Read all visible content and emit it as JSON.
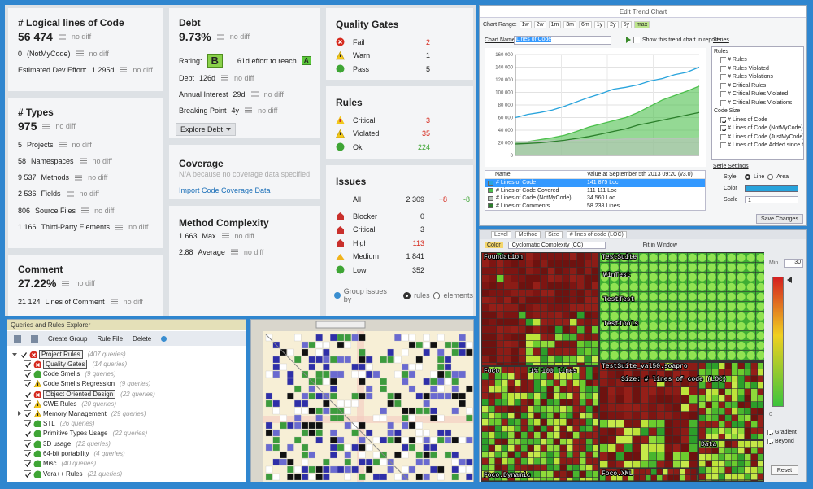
{
  "dashboard": {
    "loc": {
      "title": "# Logical lines of Code",
      "value": "56 474",
      "diff": "no diff",
      "rows": [
        {
          "num": "0",
          "label": "(NotMyCode)",
          "diff": "no diff"
        },
        {
          "num": "Estimated Dev Effort:",
          "label": "1 295d",
          "diff": "no diff"
        }
      ]
    },
    "types": {
      "title": "# Types",
      "value": "975",
      "diff": "no diff",
      "rows": [
        {
          "num": "5",
          "label": "Projects",
          "diff": "no diff"
        },
        {
          "num": "58",
          "label": "Namespaces",
          "diff": "no diff"
        },
        {
          "num": "9 537",
          "label": "Methods",
          "diff": "no diff"
        },
        {
          "num": "2 536",
          "label": "Fields",
          "diff": "no diff"
        },
        {
          "num": "806",
          "label": "Source Files",
          "diff": "no diff"
        },
        {
          "num": "1 166",
          "label": "Third-Party Elements",
          "diff": "no diff"
        }
      ]
    },
    "comment": {
      "title": "Comment",
      "value": "27.22%",
      "diff": "no diff",
      "rows": [
        {
          "num": "21 124",
          "label": "Lines of Comment",
          "diff": "no diff"
        }
      ]
    },
    "debt": {
      "title": "Debt",
      "value": "9.73%",
      "diff": "no diff",
      "rating_label": "Rating:",
      "rating": "B",
      "effort": "61d effort to reach",
      "target": "A",
      "rows": [
        {
          "num": "Debt",
          "label": "126d",
          "diff": "no diff"
        },
        {
          "num": "Annual Interest",
          "label": "29d",
          "diff": "no diff"
        },
        {
          "num": "Breaking Point",
          "label": "4y",
          "diff": "no diff"
        }
      ],
      "button": "Explore Debt"
    },
    "coverage": {
      "title": "Coverage",
      "note": "N/A because no coverage data specified",
      "link": "Import Code Coverage Data"
    },
    "method": {
      "title": "Method Complexity",
      "rows": [
        {
          "num": "1 663",
          "label": "Max",
          "diff": "no diff"
        },
        {
          "num": "2.88",
          "label": "Average",
          "diff": "no diff"
        }
      ]
    },
    "gates": {
      "title": "Quality Gates",
      "rows": [
        {
          "label": "Fail",
          "count": "2"
        },
        {
          "label": "Warn",
          "count": "1"
        },
        {
          "label": "Pass",
          "count": "5"
        }
      ]
    },
    "rules": {
      "title": "Rules",
      "rows": [
        {
          "label": "Critical",
          "count": "3"
        },
        {
          "label": "Violated",
          "count": "35"
        },
        {
          "label": "Ok",
          "count": "224"
        }
      ]
    },
    "issues": {
      "title": "Issues",
      "all": {
        "label": "All",
        "count": "2 309",
        "added": "+8",
        "removed": "-8"
      },
      "rows": [
        {
          "label": "Blocker",
          "count": "0"
        },
        {
          "label": "Critical",
          "count": "3"
        },
        {
          "label": "High",
          "count": "113"
        },
        {
          "label": "Medium",
          "count": "1 841"
        },
        {
          "label": "Low",
          "count": "352"
        }
      ],
      "group_label": "Group issues by",
      "opt_rules": "rules",
      "opt_elements": "elements"
    }
  },
  "trend": {
    "title": "Edit Trend Chart",
    "range_label": "Chart Range:",
    "ranges": [
      "1w",
      "2w",
      "1m",
      "3m",
      "6m",
      "1y",
      "2y",
      "5y",
      "max"
    ],
    "name_label": "Chart Name",
    "name": "Lines of Code",
    "show_label": "Show this trend chart in report",
    "series_header": "Series",
    "series_list": [
      "Rules",
      "# Rules",
      "# Rules Violated",
      "# Rules Violations",
      "# Critical Rules",
      "# Critical Rules Violated",
      "# Critical Rules Violations",
      "Code Size",
      "# Lines of Code",
      "# Lines of Code (NotMyCode)",
      "# Lines of Code (JustMyCode)",
      "# Lines of Code Added since the Baseline"
    ],
    "legend_name_header": "Name",
    "legend_value_header": "Value at September 5th 2013 09:20 (v3.0)",
    "legend_values": [
      "141 875 Loc",
      "111 111 Loc",
      "34 560 Loc",
      "58 238 Lines"
    ],
    "settings_title": "Serie Settings",
    "style_label": "Style",
    "style_line": "Line",
    "style_area": "Area",
    "color_label": "Color",
    "scale_label": "Scale",
    "scale_value": "1",
    "save": "Save Changes"
  },
  "chart_data": {
    "type": "line",
    "categories": [
      null,
      null,
      null,
      null,
      null,
      null,
      null,
      null,
      null,
      null,
      null,
      null,
      null,
      null,
      null,
      null
    ],
    "ylim": [
      0,
      160000
    ],
    "yticks": [
      0,
      {
        "value": 20000,
        "label": "20 000"
      },
      {
        "value": 40000,
        "label": "40 000"
      },
      {
        "value": 60000,
        "label": "60 000"
      },
      {
        "value": 80000,
        "label": "80 000"
      },
      {
        "value": 100000,
        "label": "100 000"
      },
      {
        "value": 120000,
        "label": "120 000"
      },
      {
        "value": 140000,
        "label": "140 000"
      },
      {
        "value": 160000,
        "label": "160 000"
      }
    ],
    "grid": true,
    "series": [
      {
        "name": "# Lines of Code",
        "color": "#27a3dc",
        "style": "line",
        "values": [
          60000,
          65000,
          68000,
          72000,
          78000,
          85000,
          92000,
          98000,
          105000,
          108000,
          112000,
          118000,
          122000,
          128000,
          132000,
          140000
        ]
      },
      {
        "name": "# Lines of Code Covered",
        "color": "#4cc04c",
        "style": "area",
        "values": [
          20000,
          22000,
          25000,
          28000,
          32000,
          38000,
          45000,
          50000,
          55000,
          60000,
          68000,
          78000,
          88000,
          95000,
          102000,
          110000
        ]
      },
      {
        "name": "# Lines of Code (NotMyCode)",
        "color": "#b9c4bb",
        "style": "area",
        "values": [
          22000,
          22000,
          23000,
          23000,
          24000,
          24000,
          25000,
          25000,
          25000,
          26000,
          26000,
          26000,
          27000,
          27000,
          27000,
          28000
        ]
      },
      {
        "name": "# Lines of Comments",
        "color": "#2b7f2b",
        "style": "line",
        "values": [
          18000,
          19000,
          20000,
          22000,
          24000,
          27000,
          30000,
          34000,
          38000,
          42000,
          48000,
          52000,
          56000,
          60000,
          64000,
          68000
        ]
      }
    ]
  },
  "treemap": {
    "level_label": "Level",
    "level": "Method",
    "size_label": "Size",
    "size": "# lines of code (LOC)",
    "color_label": "Color",
    "color_metric": "Cyclomatic Complexity (CC)",
    "fit": "Fit in Window",
    "min_label": "Min",
    "max_value": "30",
    "min_value": "0",
    "gradient": "Gradient",
    "beyond": "Beyond",
    "reset": "Reset",
    "labels": [
      "Foundation",
      "TestSuite",
      "WinTest",
      "TestTest",
      "TestTools",
      "TestSuite_val50.soapro",
      "Size: # lines of code (LOC)",
      "Foco",
      "1% 100 lines",
      "Foco.XML",
      "Foco.Dynamic",
      "Data"
    ]
  },
  "queries": {
    "title": "Queries and Rules Explorer",
    "create": "Create Group",
    "rule_file": "Rule File",
    "delete": "Delete",
    "items": [
      {
        "name": "Project Rules",
        "count": "(407 queries)"
      },
      {
        "name": "Quality Gates",
        "count": "(14 queries)"
      },
      {
        "name": "Code Smells",
        "count": "(9 queries)"
      },
      {
        "name": "Code Smells Regression",
        "count": "(9 queries)"
      },
      {
        "name": "Object Oriented Design",
        "count": "(22 queries)"
      },
      {
        "name": "CWE Rules",
        "count": "(20 queries)"
      },
      {
        "name": "Memory Management",
        "count": "(29 queries)"
      },
      {
        "name": "STL",
        "count": "(26 queries)"
      },
      {
        "name": "Primitive Types Usage",
        "count": "(22 queries)"
      },
      {
        "name": "3D usage",
        "count": "(22 queries)"
      },
      {
        "name": "64-bit portability",
        "count": "(4 queries)"
      },
      {
        "name": "Misc",
        "count": "(40 queries)"
      },
      {
        "name": "Vera++ Rules",
        "count": "(21 queries)"
      }
    ]
  }
}
